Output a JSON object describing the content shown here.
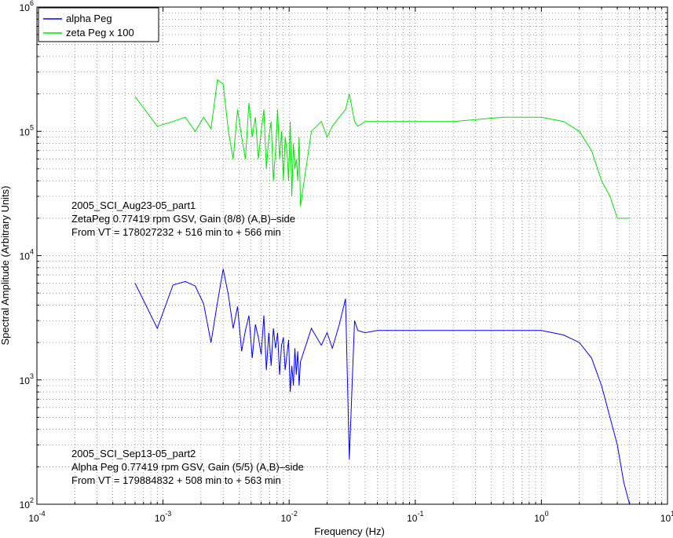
{
  "chart_data": {
    "type": "line",
    "xscale": "log",
    "yscale": "log",
    "xlim": [
      0.0001,
      10
    ],
    "ylim": [
      100,
      1000000
    ],
    "xlabel": "Frequency (Hz)",
    "ylabel": "Spectral Amplitude (Arbitrary Units)",
    "grid": true,
    "legend_position": "top-left",
    "x_tick_labels": [
      {
        "base": "10",
        "exp": "-4"
      },
      {
        "base": "10",
        "exp": "-3"
      },
      {
        "base": "10",
        "exp": "-2"
      },
      {
        "base": "10",
        "exp": "-1"
      },
      {
        "base": "10",
        "exp": "0"
      },
      {
        "base": "10",
        "exp": "1"
      }
    ],
    "y_tick_labels": [
      {
        "base": "10",
        "exp": "2"
      },
      {
        "base": "10",
        "exp": "3"
      },
      {
        "base": "10",
        "exp": "4"
      },
      {
        "base": "10",
        "exp": "5"
      },
      {
        "base": "10",
        "exp": "6"
      }
    ],
    "series": [
      {
        "name": "alpha Peg",
        "color": "#0000ff",
        "x": [
          0.0006,
          0.0009,
          0.0012,
          0.0015,
          0.0018,
          0.0021,
          0.0024,
          0.0027,
          0.003,
          0.0033,
          0.0036,
          0.0039,
          0.0042,
          0.0045,
          0.0048,
          0.0051,
          0.0054,
          0.0057,
          0.006,
          0.0063,
          0.0066,
          0.0069,
          0.0072,
          0.0075,
          0.0078,
          0.0081,
          0.0084,
          0.0087,
          0.009,
          0.0093,
          0.0096,
          0.0099,
          0.0102,
          0.0105,
          0.0108,
          0.0111,
          0.0114,
          0.0117,
          0.012,
          0.0123,
          0.015,
          0.018,
          0.02,
          0.022,
          0.025,
          0.028,
          0.03,
          0.033,
          0.035,
          0.04,
          0.05,
          0.07,
          0.1,
          0.2,
          0.5,
          1,
          1.5,
          2,
          2.5,
          3,
          3.5,
          4,
          4.5,
          5
        ],
        "y": [
          6000,
          2600,
          5800,
          6200,
          5700,
          4100,
          2000,
          4200,
          7800,
          4800,
          2600,
          3900,
          1700,
          2500,
          3300,
          1500,
          2800,
          2200,
          1600,
          3300,
          1200,
          2400,
          1300,
          2600,
          1800,
          2400,
          1100,
          1900,
          2200,
          1200,
          1600,
          2100,
          800,
          1300,
          900,
          1800,
          1100,
          1700,
          900,
          1400,
          2600,
          1900,
          2400,
          1800,
          2800,
          4500,
          230,
          3000,
          2500,
          2400,
          2500,
          2500,
          2500,
          2500,
          2500,
          2500,
          2300,
          2000,
          1500,
          900,
          500,
          300,
          150,
          100
        ]
      },
      {
        "name": "zeta Peg x 100",
        "color": "#00e600",
        "x": [
          0.0006,
          0.0009,
          0.0012,
          0.0015,
          0.0018,
          0.0021,
          0.0024,
          0.0027,
          0.003,
          0.0033,
          0.0036,
          0.0039,
          0.0042,
          0.0045,
          0.0048,
          0.0051,
          0.0054,
          0.0057,
          0.006,
          0.0063,
          0.0066,
          0.0069,
          0.0072,
          0.0075,
          0.0078,
          0.0081,
          0.0084,
          0.0087,
          0.009,
          0.0093,
          0.0096,
          0.0099,
          0.0102,
          0.0105,
          0.0108,
          0.0111,
          0.0114,
          0.0117,
          0.012,
          0.0123,
          0.015,
          0.018,
          0.02,
          0.022,
          0.025,
          0.028,
          0.03,
          0.033,
          0.035,
          0.04,
          0.05,
          0.07,
          0.1,
          0.2,
          0.5,
          1,
          1.5,
          2,
          2.5,
          3,
          3.5,
          4,
          4.5,
          5
        ],
        "y": [
          190000,
          110000,
          120000,
          130000,
          100000,
          130000,
          105000,
          260000,
          240000,
          100000,
          60000,
          150000,
          90000,
          60000,
          170000,
          90000,
          130000,
          60000,
          100000,
          150000,
          50000,
          90000,
          120000,
          40000,
          70000,
          150000,
          60000,
          100000,
          40000,
          90000,
          70000,
          40000,
          120000,
          30000,
          80000,
          50000,
          60000,
          40000,
          90000,
          25000,
          100000,
          120000,
          90000,
          110000,
          130000,
          150000,
          200000,
          120000,
          110000,
          120000,
          120000,
          120000,
          120000,
          120000,
          130000,
          130000,
          120000,
          100000,
          70000,
          40000,
          30000,
          20000,
          20000,
          20000
        ]
      }
    ],
    "annotations": [
      {
        "lines": [
          "2005_SCI_Aug23-05_part1",
          "ZetaPeg 0.77419 rpm GSV, Gain (8/8) (A,B)–side",
          "From VT = 178027232 + 516 min to + 566 min"
        ]
      },
      {
        "lines": [
          "2005_SCI_Sep13-05_part2",
          "Alpha Peg 0.77419 rpm GSV, Gain (5/5) (A,B)–side",
          "From VT = 179884832 + 508 min to + 563 min"
        ]
      }
    ]
  }
}
